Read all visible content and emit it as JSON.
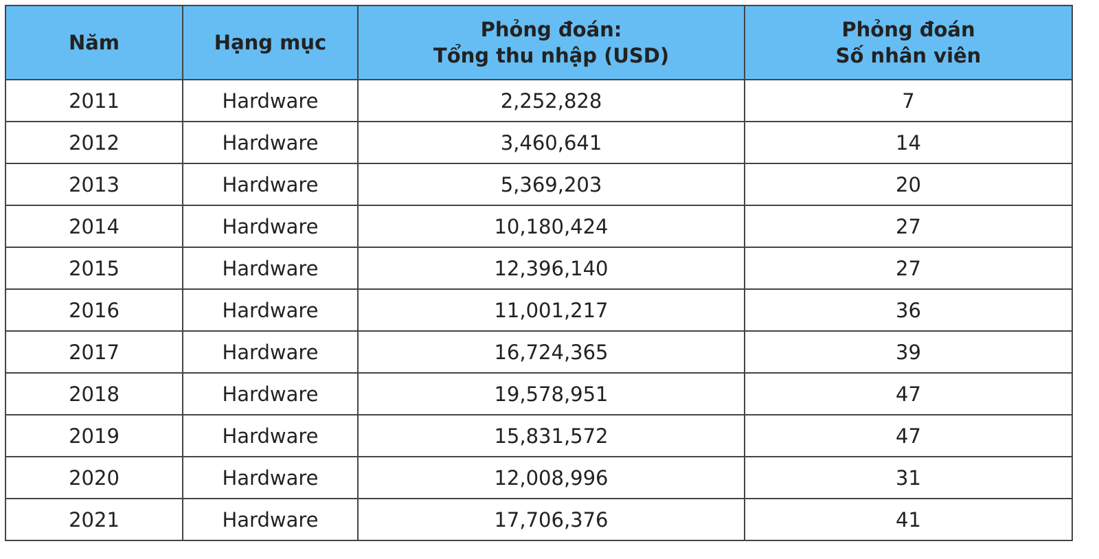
{
  "table": {
    "header": [
      [
        "Năm"
      ],
      [
        "Hạng mục"
      ],
      [
        "Phỏng đoán:",
        "Tổng thu nhập (USD)"
      ],
      [
        "Phỏng đoán",
        "Số nhân viên"
      ]
    ],
    "rows": [
      [
        "2011",
        "Hardware",
        "2,252,828",
        "7"
      ],
      [
        "2012",
        "Hardware",
        "3,460,641",
        "14"
      ],
      [
        "2013",
        "Hardware",
        "5,369,203",
        "20"
      ],
      [
        "2014",
        "Hardware",
        "10,180,424",
        "27"
      ],
      [
        "2015",
        "Hardware",
        "12,396,140",
        "27"
      ],
      [
        "2016",
        "Hardware",
        "11,001,217",
        "36"
      ],
      [
        "2017",
        "Hardware",
        "16,724,365",
        "39"
      ],
      [
        "2018",
        "Hardware",
        "19,578,951",
        "47"
      ],
      [
        "2019",
        "Hardware",
        "15,831,572",
        "47"
      ],
      [
        "2020",
        "Hardware",
        "12,008,996",
        "31"
      ],
      [
        "2021",
        "Hardware",
        "17,706,376",
        "41"
      ]
    ]
  }
}
